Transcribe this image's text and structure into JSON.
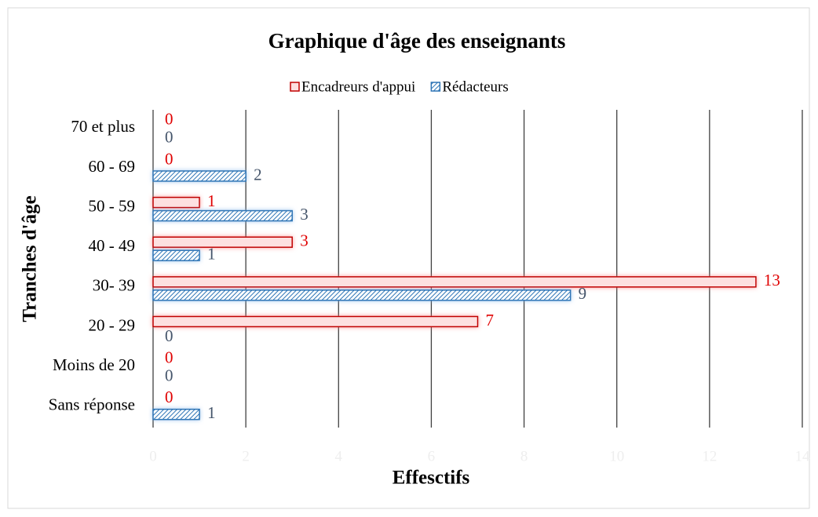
{
  "chart_data": {
    "type": "hbar",
    "title": "Graphique d'âge des enseignants",
    "xlabel": "Effesctifs",
    "ylabel": "Tranches d'âge",
    "categories": [
      "70 et plus",
      "60 - 69",
      "50 - 59",
      "40 - 49",
      "30- 39",
      "20 - 29",
      "Moins de 20",
      "Sans réponse"
    ],
    "series": [
      {
        "name": "Encadreurs d'appui",
        "color": "#c00000",
        "values": [
          0,
          0,
          1,
          3,
          13,
          7,
          0,
          0
        ]
      },
      {
        "name": "Rédacteurs",
        "color": "#2e75b6",
        "values": [
          0,
          2,
          3,
          1,
          9,
          0,
          0,
          1
        ]
      }
    ],
    "xlim": [
      0,
      14
    ],
    "xticks": [
      0,
      2,
      4,
      6,
      8,
      10,
      12,
      14
    ],
    "grid": true,
    "legend": "top"
  }
}
